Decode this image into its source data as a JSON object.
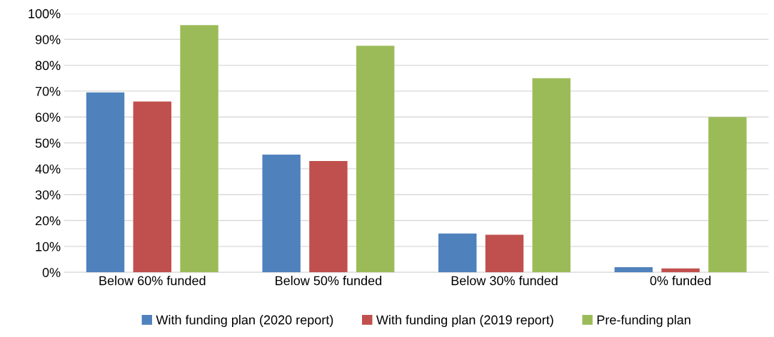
{
  "chart_data": {
    "type": "bar",
    "categories": [
      "Below 60% funded",
      "Below 50% funded",
      "Below 30% funded",
      "0% funded"
    ],
    "series": [
      {
        "name": "With funding plan (2020 report)",
        "color": "#4f81bd",
        "values": [
          69.5,
          45.5,
          15,
          2
        ]
      },
      {
        "name": "With funding plan (2019 report)",
        "color": "#c0504d",
        "values": [
          66,
          43,
          14.5,
          1.5
        ]
      },
      {
        "name": "Pre-funding plan",
        "color": "#9bbb59",
        "values": [
          95.5,
          87.5,
          75,
          60
        ]
      }
    ],
    "ylim": [
      0,
      100
    ],
    "yticks": [
      {
        "value": 0,
        "label": "0%"
      },
      {
        "value": 10,
        "label": "10%"
      },
      {
        "value": 20,
        "label": "20%"
      },
      {
        "value": 30,
        "label": "30%"
      },
      {
        "value": 40,
        "label": "40%"
      },
      {
        "value": 50,
        "label": "50%"
      },
      {
        "value": 60,
        "label": "60%"
      },
      {
        "value": 70,
        "label": "70%"
      },
      {
        "value": 80,
        "label": "80%"
      },
      {
        "value": 90,
        "label": "90%"
      },
      {
        "value": 100,
        "label": "100%"
      }
    ],
    "grid": "y",
    "legend": "bottom"
  }
}
